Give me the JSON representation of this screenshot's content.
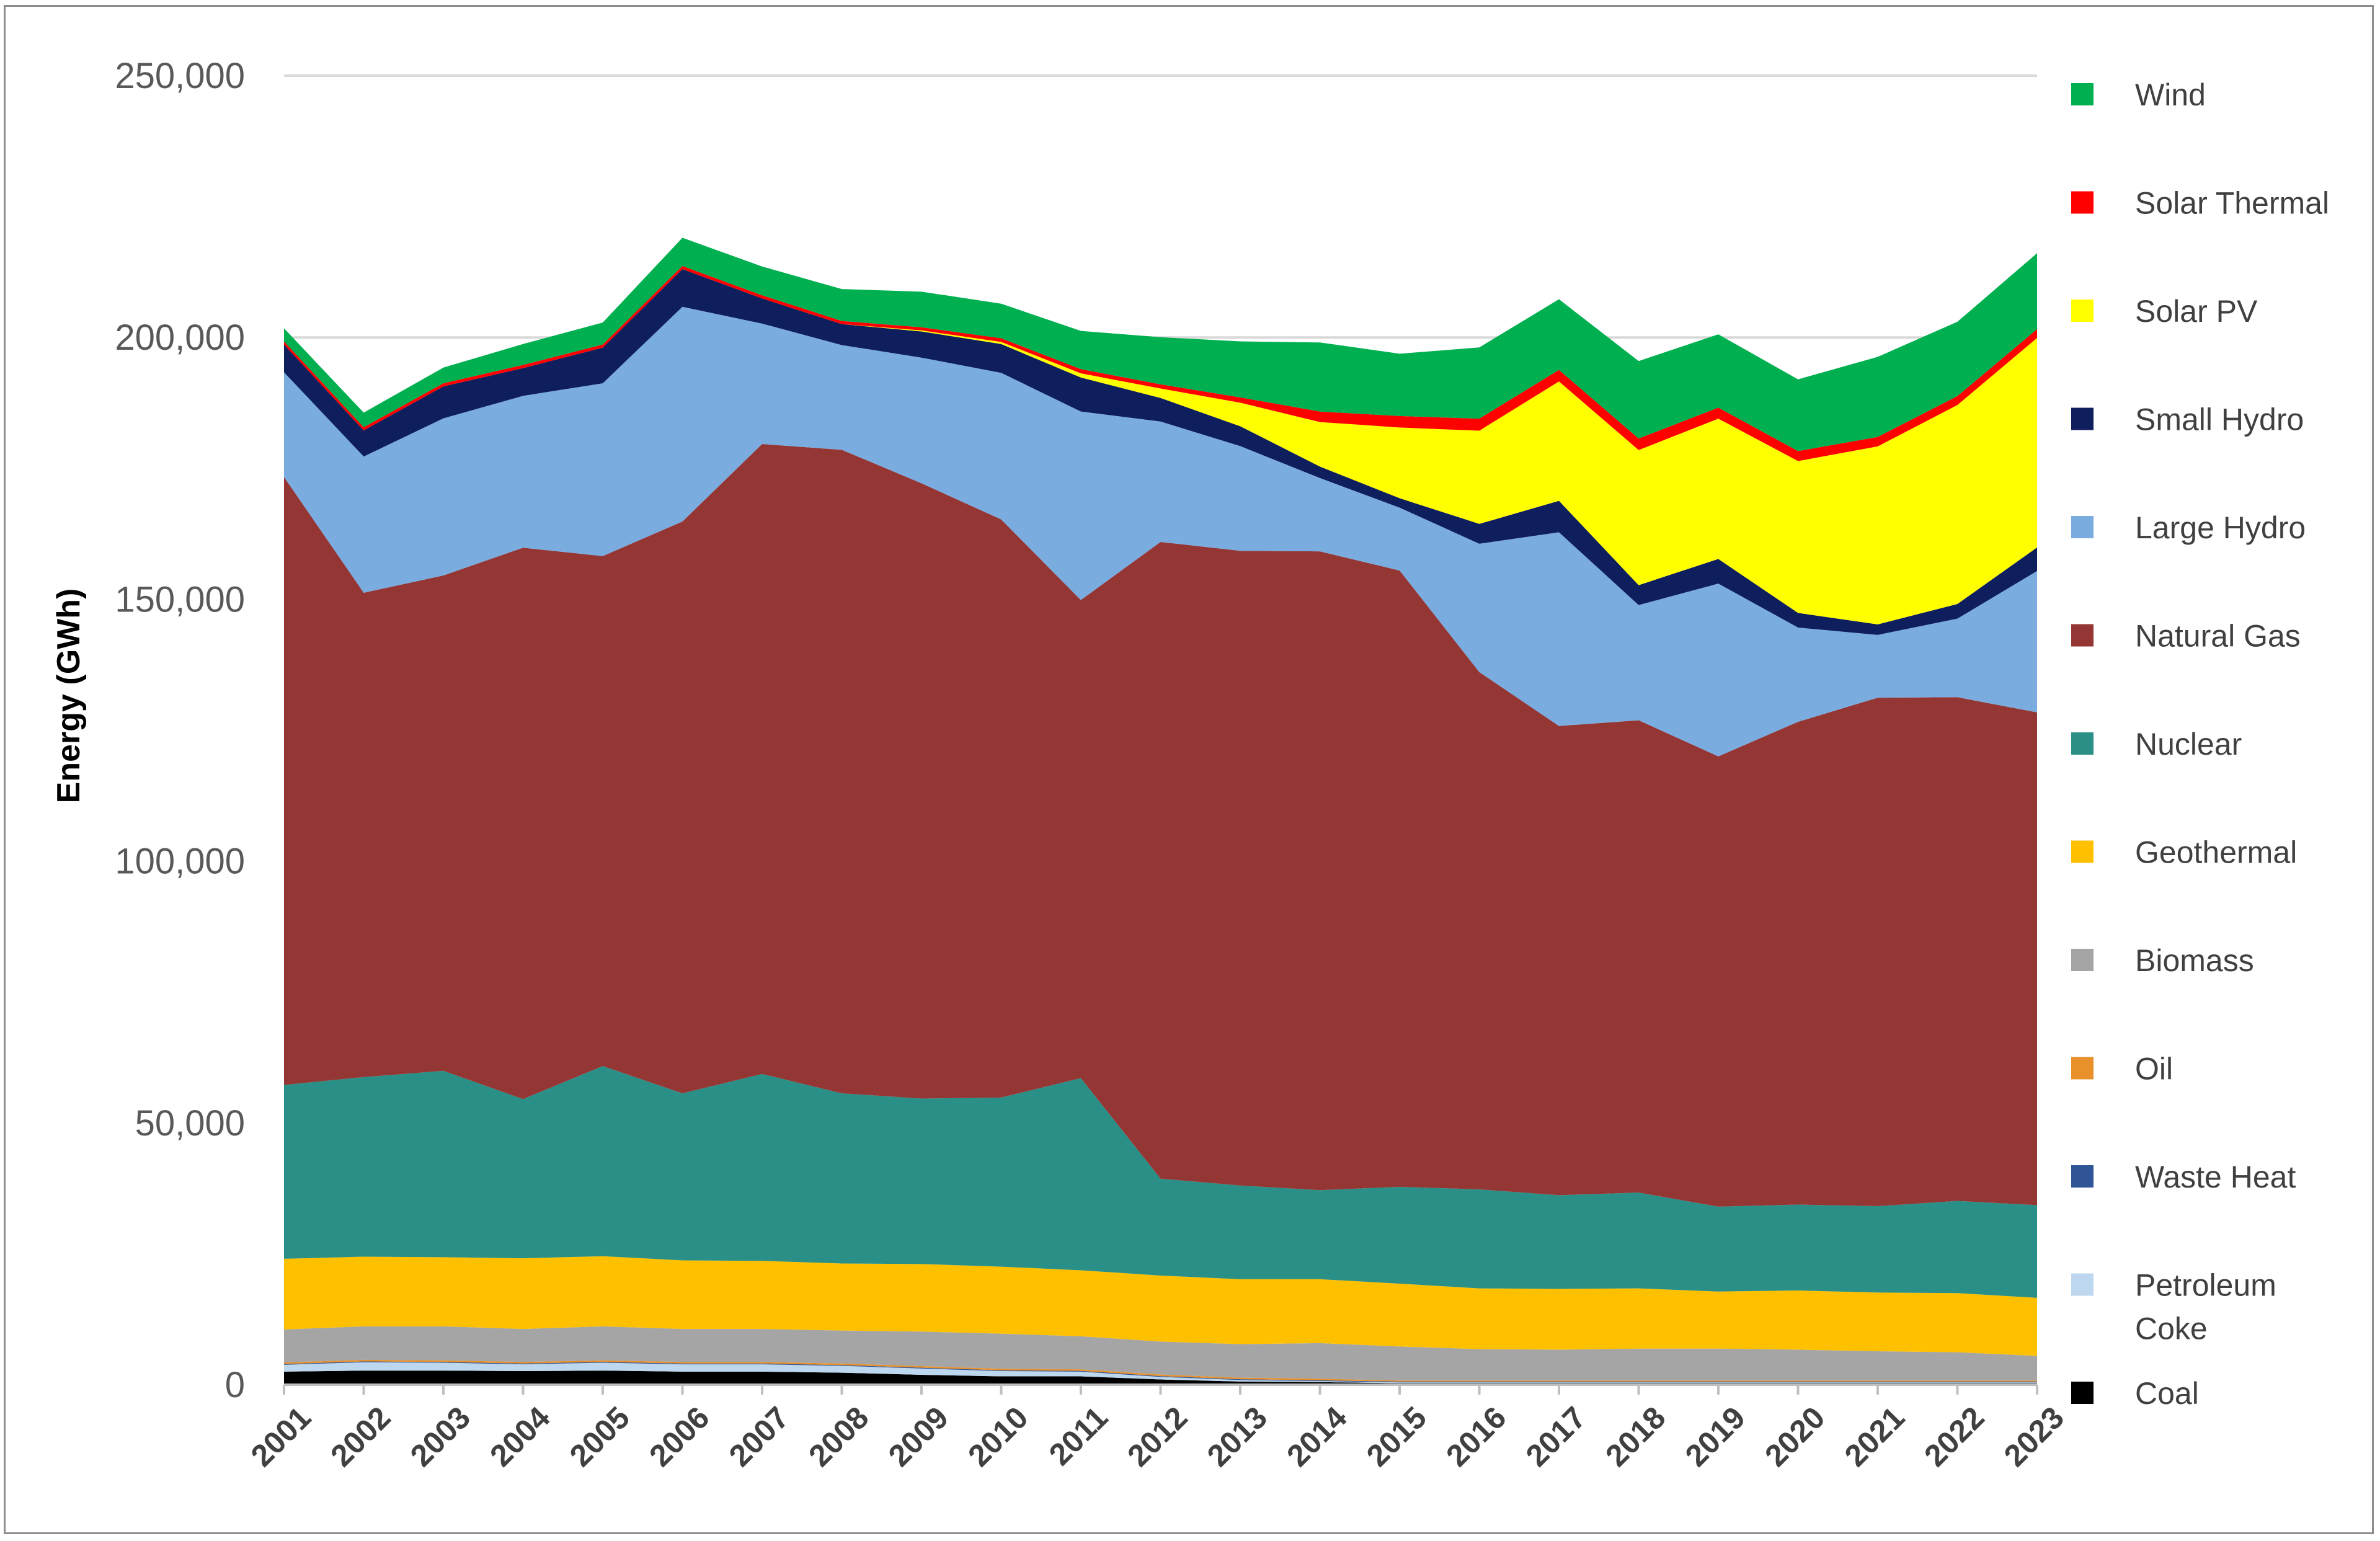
{
  "chart_data": {
    "type": "area",
    "stacked": true,
    "title": "",
    "xlabel": "",
    "ylabel": "Energy (GWh)",
    "ylim": [
      0,
      250000
    ],
    "yticks": [
      0,
      50000,
      100000,
      150000,
      200000,
      250000
    ],
    "ytick_labels": [
      "0",
      "50,000",
      "100,000",
      "150,000",
      "200,000",
      "250,000"
    ],
    "grid": true,
    "legend_position": "right",
    "categories": [
      "2001",
      "2002",
      "2003",
      "2004",
      "2005",
      "2006",
      "2007",
      "2008",
      "2009",
      "2010",
      "2011",
      "2012",
      "2013",
      "2014",
      "2015",
      "2016",
      "2017",
      "2018",
      "2019",
      "2020",
      "2021",
      "2022",
      "2023"
    ],
    "series": [
      {
        "name": "Coal",
        "color": "#000000",
        "values": [
          2500,
          2700,
          2700,
          2600,
          2700,
          2500,
          2500,
          2300,
          1900,
          1600,
          1600,
          1000,
          600,
          500,
          300,
          300,
          300,
          300,
          300,
          300,
          300,
          300,
          300
        ]
      },
      {
        "name": "Petroleum Coke",
        "color": "#bdd7ee",
        "values": [
          1300,
          1600,
          1500,
          1300,
          1500,
          1400,
          1400,
          1300,
          1200,
          1000,
          900,
          500,
          300,
          200,
          150,
          150,
          150,
          150,
          150,
          150,
          150,
          150,
          150
        ]
      },
      {
        "name": "Waste Heat",
        "color": "#2f5597",
        "values": [
          150,
          150,
          150,
          150,
          150,
          150,
          150,
          150,
          150,
          150,
          150,
          150,
          150,
          150,
          150,
          150,
          150,
          150,
          150,
          150,
          150,
          150,
          150
        ]
      },
      {
        "name": "Oil",
        "color": "#e8902a",
        "values": [
          300,
          300,
          300,
          300,
          300,
          300,
          300,
          300,
          300,
          300,
          300,
          300,
          300,
          300,
          200,
          200,
          200,
          200,
          200,
          200,
          200,
          200,
          200
        ]
      },
      {
        "name": "Biomass",
        "color": "#a5a5a5",
        "values": [
          6300,
          6400,
          6500,
          6300,
          6500,
          6300,
          6300,
          6300,
          6600,
          6700,
          6300,
          6300,
          6400,
          6800,
          6500,
          6000,
          5900,
          6100,
          6100,
          5900,
          5600,
          5400,
          4700
        ]
      },
      {
        "name": "Geothermal",
        "color": "#ffc000",
        "values": [
          13500,
          13300,
          13200,
          13500,
          13400,
          13100,
          13000,
          12800,
          12900,
          12800,
          12600,
          12600,
          12400,
          12200,
          12000,
          11600,
          11600,
          11500,
          10900,
          11300,
          11200,
          11300,
          11100
        ]
      },
      {
        "name": "Nuclear",
        "color": "#2a9087",
        "values": [
          33200,
          34300,
          35600,
          30400,
          36300,
          31900,
          35700,
          32500,
          31600,
          32300,
          36700,
          18500,
          17900,
          17000,
          18500,
          18900,
          17900,
          18300,
          16200,
          16400,
          16500,
          17600,
          17700
        ]
      },
      {
        "name": "Natural Gas",
        "color": "#943634",
        "values": [
          116100,
          92500,
          94600,
          105300,
          97400,
          109200,
          120300,
          122900,
          117500,
          110400,
          91300,
          121600,
          121200,
          122000,
          117700,
          98800,
          89600,
          90200,
          86000,
          92200,
          97100,
          96200,
          94100
        ]
      },
      {
        "name": "Large Hydro",
        "color": "#7aacdf",
        "values": [
          20000,
          26000,
          30000,
          29000,
          33000,
          41000,
          23000,
          20000,
          24000,
          28000,
          36000,
          23000,
          20000,
          14000,
          12000,
          24500,
          37000,
          22000,
          33000,
          18000,
          12000,
          15000,
          27000
        ]
      },
      {
        "name": "Small Hydro",
        "color": "#0f1f5e",
        "values": [
          5300,
          5000,
          6100,
          5300,
          6800,
          7200,
          4800,
          4000,
          5000,
          5500,
          6500,
          4500,
          3800,
          2200,
          1800,
          3800,
          6000,
          3800,
          4700,
          2800,
          2000,
          2800,
          4500
        ]
      },
      {
        "name": "Solar PV",
        "color": "#ffff00",
        "values": [
          0,
          0,
          0,
          0,
          0,
          0,
          0,
          0,
          200,
          400,
          800,
          1800,
          4500,
          8500,
          13500,
          17800,
          22800,
          25800,
          26800,
          29000,
          34000,
          38000,
          40000
        ]
      },
      {
        "name": "Solar Thermal",
        "color": "#ff0000",
        "values": [
          600,
          600,
          600,
          600,
          600,
          600,
          600,
          600,
          600,
          700,
          800,
          800,
          1000,
          2000,
          2200,
          2300,
          2200,
          2200,
          2100,
          1900,
          1800,
          1700,
          1700
        ]
      },
      {
        "name": "Wind",
        "color": "#00b050",
        "values": [
          2500,
          2800,
          3000,
          4000,
          4200,
          5400,
          5500,
          6100,
          6800,
          6600,
          7300,
          9000,
          10700,
          13200,
          11900,
          13600,
          13500,
          14800,
          14000,
          13700,
          15300,
          14200,
          14500
        ]
      }
    ],
    "legend_order": [
      "Wind",
      "Solar Thermal",
      "Solar PV",
      "Small Hydro",
      "Large Hydro",
      "Natural Gas",
      "Nuclear",
      "Geothermal",
      "Biomass",
      "Oil",
      "Waste Heat",
      "Petroleum Coke",
      "Coal"
    ],
    "legend_labels": {
      "Wind": [
        "Wind"
      ],
      "Solar Thermal": [
        "Solar Thermal"
      ],
      "Solar PV": [
        "Solar PV"
      ],
      "Small Hydro": [
        "Small Hydro"
      ],
      "Large Hydro": [
        "Large Hydro"
      ],
      "Natural Gas": [
        "Natural Gas"
      ],
      "Nuclear": [
        "Nuclear"
      ],
      "Geothermal": [
        "Geothermal"
      ],
      "Biomass": [
        "Biomass"
      ],
      "Oil": [
        "Oil"
      ],
      "Waste Heat": [
        "Waste Heat"
      ],
      "Petroleum Coke": [
        "Petroleum",
        "Coke"
      ],
      "Coal": [
        "Coal"
      ]
    }
  },
  "colors": {
    "gridline": "#d9d9d9",
    "axis": "#bfbfbf",
    "frame": "#8c8c8c"
  }
}
